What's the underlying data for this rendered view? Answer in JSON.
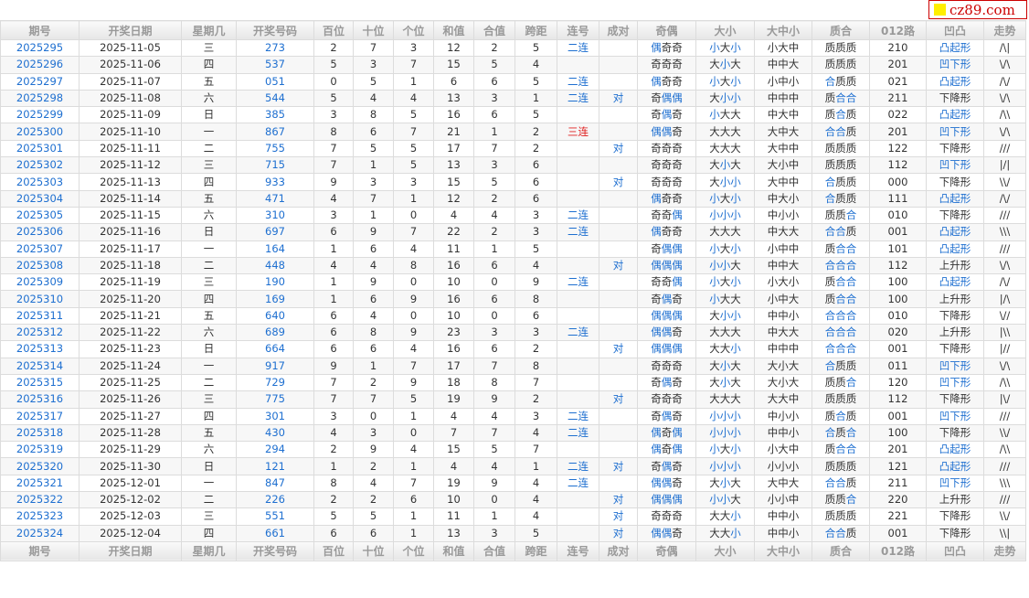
{
  "logo": {
    "text": "cz89.com"
  },
  "colors": {
    "blue": "#1e6fd0",
    "red": "#e02020",
    "logo_yellow": "#ffef00"
  },
  "columns": [
    "期号",
    "开奖日期",
    "星期几",
    "开奖号码",
    "百位",
    "十位",
    "个位",
    "和值",
    "合值",
    "跨距",
    "连号",
    "成对",
    "奇偶",
    "大小",
    "大中小",
    "质合",
    "012路",
    "凹凸",
    "走势"
  ],
  "rows": [
    [
      "2025295",
      "2025-11-05",
      "三",
      "273",
      "2",
      "7",
      "3",
      "12",
      "2",
      "5",
      "二连",
      "",
      "偶奇奇",
      "小大小",
      "小大中",
      "质质质",
      "210",
      "凸起形",
      "/\\|"
    ],
    [
      "2025296",
      "2025-11-06",
      "四",
      "537",
      "5",
      "3",
      "7",
      "15",
      "5",
      "4",
      "",
      "",
      "奇奇奇",
      "大小大",
      "中中大",
      "质质质",
      "201",
      "凹下形",
      "\\/\\"
    ],
    [
      "2025297",
      "2025-11-07",
      "五",
      "051",
      "0",
      "5",
      "1",
      "6",
      "6",
      "5",
      "二连",
      "",
      "偶奇奇",
      "小大小",
      "小中小",
      "合质质",
      "021",
      "凸起形",
      "/\\/"
    ],
    [
      "2025298",
      "2025-11-08",
      "六",
      "544",
      "5",
      "4",
      "4",
      "13",
      "3",
      "1",
      "二连",
      "对",
      "奇偶偶",
      "大小小",
      "中中中",
      "质合合",
      "211",
      "下降形",
      "\\/\\"
    ],
    [
      "2025299",
      "2025-11-09",
      "日",
      "385",
      "3",
      "8",
      "5",
      "16",
      "6",
      "5",
      "",
      "",
      "奇偶奇",
      "小大大",
      "中大中",
      "质合质",
      "022",
      "凸起形",
      "/\\\\"
    ],
    [
      "2025300",
      "2025-11-10",
      "一",
      "867",
      "8",
      "6",
      "7",
      "21",
      "1",
      "2",
      "三连",
      "",
      "偶偶奇",
      "大大大",
      "大中大",
      "合合质",
      "201",
      "凹下形",
      "\\/\\"
    ],
    [
      "2025301",
      "2025-11-11",
      "二",
      "755",
      "7",
      "5",
      "5",
      "17",
      "7",
      "2",
      "",
      "对",
      "奇奇奇",
      "大大大",
      "大中中",
      "质质质",
      "122",
      "下降形",
      "///"
    ],
    [
      "2025302",
      "2025-11-12",
      "三",
      "715",
      "7",
      "1",
      "5",
      "13",
      "3",
      "6",
      "",
      "",
      "奇奇奇",
      "大小大",
      "大小中",
      "质质质",
      "112",
      "凹下形",
      "|/|"
    ],
    [
      "2025303",
      "2025-11-13",
      "四",
      "933",
      "9",
      "3",
      "3",
      "15",
      "5",
      "6",
      "",
      "对",
      "奇奇奇",
      "大小小",
      "大中中",
      "合质质",
      "000",
      "下降形",
      "\\\\/"
    ],
    [
      "2025304",
      "2025-11-14",
      "五",
      "471",
      "4",
      "7",
      "1",
      "12",
      "2",
      "6",
      "",
      "",
      "偶奇奇",
      "小大小",
      "中大小",
      "合质质",
      "111",
      "凸起形",
      "/\\/"
    ],
    [
      "2025305",
      "2025-11-15",
      "六",
      "310",
      "3",
      "1",
      "0",
      "4",
      "4",
      "3",
      "二连",
      "",
      "奇奇偶",
      "小小小",
      "中小小",
      "质质合",
      "010",
      "下降形",
      "///"
    ],
    [
      "2025306",
      "2025-11-16",
      "日",
      "697",
      "6",
      "9",
      "7",
      "22",
      "2",
      "3",
      "二连",
      "",
      "偶奇奇",
      "大大大",
      "中大大",
      "合合质",
      "001",
      "凸起形",
      "\\\\\\"
    ],
    [
      "2025307",
      "2025-11-17",
      "一",
      "164",
      "1",
      "6",
      "4",
      "11",
      "1",
      "5",
      "",
      "",
      "奇偶偶",
      "小大小",
      "小中中",
      "质合合",
      "101",
      "凸起形",
      "///"
    ],
    [
      "2025308",
      "2025-11-18",
      "二",
      "448",
      "4",
      "4",
      "8",
      "16",
      "6",
      "4",
      "",
      "对",
      "偶偶偶",
      "小小大",
      "中中大",
      "合合合",
      "112",
      "上升形",
      "\\/\\"
    ],
    [
      "2025309",
      "2025-11-19",
      "三",
      "190",
      "1",
      "9",
      "0",
      "10",
      "0",
      "9",
      "二连",
      "",
      "奇奇偶",
      "小大小",
      "小大小",
      "质合合",
      "100",
      "凸起形",
      "/\\/"
    ],
    [
      "2025310",
      "2025-11-20",
      "四",
      "169",
      "1",
      "6",
      "9",
      "16",
      "6",
      "8",
      "",
      "",
      "奇偶奇",
      "小大大",
      "小中大",
      "质合合",
      "100",
      "上升形",
      "|/\\"
    ],
    [
      "2025311",
      "2025-11-21",
      "五",
      "640",
      "6",
      "4",
      "0",
      "10",
      "0",
      "6",
      "",
      "",
      "偶偶偶",
      "大小小",
      "中中小",
      "合合合",
      "010",
      "下降形",
      "\\//"
    ],
    [
      "2025312",
      "2025-11-22",
      "六",
      "689",
      "6",
      "8",
      "9",
      "23",
      "3",
      "3",
      "二连",
      "",
      "偶偶奇",
      "大大大",
      "中大大",
      "合合合",
      "020",
      "上升形",
      "|\\\\"
    ],
    [
      "2025313",
      "2025-11-23",
      "日",
      "664",
      "6",
      "6",
      "4",
      "16",
      "6",
      "2",
      "",
      "对",
      "偶偶偶",
      "大大小",
      "中中中",
      "合合合",
      "001",
      "下降形",
      "|//"
    ],
    [
      "2025314",
      "2025-11-24",
      "一",
      "917",
      "9",
      "1",
      "7",
      "17",
      "7",
      "8",
      "",
      "",
      "奇奇奇",
      "大小大",
      "大小大",
      "合质质",
      "011",
      "凹下形",
      "\\/\\"
    ],
    [
      "2025315",
      "2025-11-25",
      "二",
      "729",
      "7",
      "2",
      "9",
      "18",
      "8",
      "7",
      "",
      "",
      "奇偶奇",
      "大小大",
      "大小大",
      "质质合",
      "120",
      "凹下形",
      "/\\\\"
    ],
    [
      "2025316",
      "2025-11-26",
      "三",
      "775",
      "7",
      "7",
      "5",
      "19",
      "9",
      "2",
      "",
      "对",
      "奇奇奇",
      "大大大",
      "大大中",
      "质质质",
      "112",
      "下降形",
      "|\\/"
    ],
    [
      "2025317",
      "2025-11-27",
      "四",
      "301",
      "3",
      "0",
      "1",
      "4",
      "4",
      "3",
      "二连",
      "",
      "奇偶奇",
      "小小小",
      "中小小",
      "质合质",
      "001",
      "凹下形",
      "///"
    ],
    [
      "2025318",
      "2025-11-28",
      "五",
      "430",
      "4",
      "3",
      "0",
      "7",
      "7",
      "4",
      "二连",
      "",
      "偶奇偶",
      "小小小",
      "中中小",
      "合质合",
      "100",
      "下降形",
      "\\\\/"
    ],
    [
      "2025319",
      "2025-11-29",
      "六",
      "294",
      "2",
      "9",
      "4",
      "15",
      "5",
      "7",
      "",
      "",
      "偶奇偶",
      "小大小",
      "小大中",
      "质合合",
      "201",
      "凸起形",
      "/\\\\"
    ],
    [
      "2025320",
      "2025-11-30",
      "日",
      "121",
      "1",
      "2",
      "1",
      "4",
      "4",
      "1",
      "二连",
      "对",
      "奇偶奇",
      "小小小",
      "小小小",
      "质质质",
      "121",
      "凸起形",
      "///"
    ],
    [
      "2025321",
      "2025-12-01",
      "一",
      "847",
      "8",
      "4",
      "7",
      "19",
      "9",
      "4",
      "二连",
      "",
      "偶偶奇",
      "大小大",
      "大中大",
      "合合质",
      "211",
      "凹下形",
      "\\\\\\"
    ],
    [
      "2025322",
      "2025-12-02",
      "二",
      "226",
      "2",
      "2",
      "6",
      "10",
      "0",
      "4",
      "",
      "对",
      "偶偶偶",
      "小小大",
      "小小中",
      "质质合",
      "220",
      "上升形",
      "///"
    ],
    [
      "2025323",
      "2025-12-03",
      "三",
      "551",
      "5",
      "5",
      "1",
      "11",
      "1",
      "4",
      "",
      "对",
      "奇奇奇",
      "大大小",
      "中中小",
      "质质质",
      "221",
      "下降形",
      "\\\\/"
    ],
    [
      "2025324",
      "2025-12-04",
      "四",
      "661",
      "6",
      "6",
      "1",
      "13",
      "3",
      "5",
      "",
      "对",
      "偶偶奇",
      "大大小",
      "中中小",
      "合合质",
      "001",
      "下降形",
      "\\\\|"
    ]
  ],
  "footer_columns": [
    "期号",
    "开奖日期",
    "星期几",
    "开奖号码",
    "百位",
    "十位",
    "个位",
    "和值",
    "合值",
    "跨距",
    "连号",
    "成对",
    "奇偶",
    "大小",
    "大中小",
    "质合",
    "012路",
    "凹凸",
    "走势"
  ]
}
